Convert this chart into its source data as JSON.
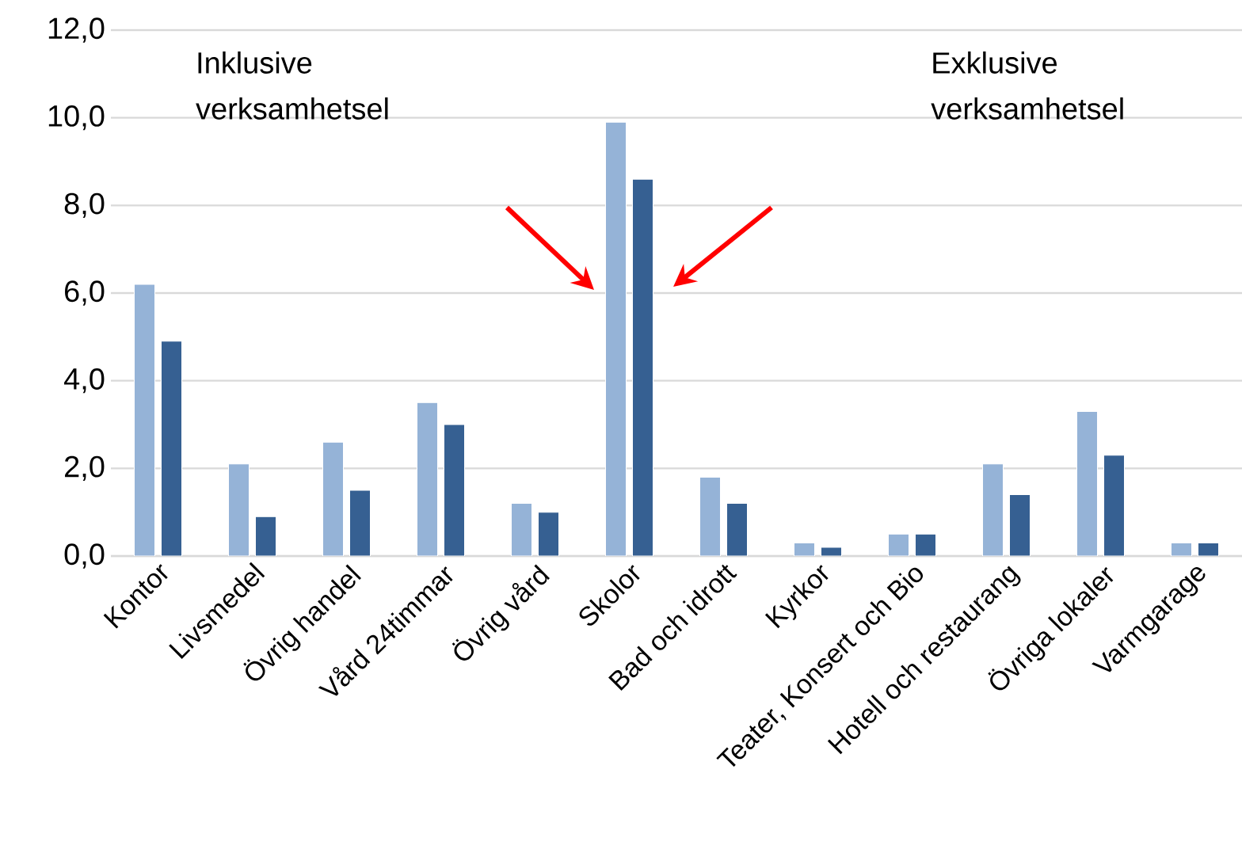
{
  "chart_data": {
    "type": "bar",
    "categories": [
      "Kontor",
      "Livsmedel",
      "Övrig handel",
      "Vård 24timmar",
      "Övrig vård",
      "Skolor",
      "Bad och idrott",
      "Kyrkor",
      "Teater, Konsert och Bio",
      "Hotell och restaurang",
      "Övriga lokaler",
      "Varmgarage"
    ],
    "series": [
      {
        "color": "#95b3d7",
        "values": [
          6.2,
          2.1,
          2.6,
          3.5,
          1.2,
          9.9,
          1.8,
          0.3,
          0.5,
          2.1,
          3.3,
          0.3
        ]
      },
      {
        "color": "#366092",
        "values": [
          4.9,
          0.9,
          1.5,
          3.0,
          1.0,
          8.6,
          1.2,
          0.2,
          0.5,
          1.4,
          2.3,
          0.3
        ]
      }
    ],
    "ylim": [
      0,
      12
    ],
    "yticks": [
      {
        "value": 0,
        "label": "0,0"
      },
      {
        "value": 2,
        "label": "2,0"
      },
      {
        "value": 4,
        "label": "4,0"
      },
      {
        "value": 6,
        "label": "6,0"
      },
      {
        "value": 8,
        "label": "8,0"
      },
      {
        "value": 10,
        "label": "10,0"
      },
      {
        "value": 12,
        "label": "12,0"
      }
    ],
    "grid": "y",
    "annotations": [
      "Inklusive verksamhetsel",
      "Exklusive verksamhetsel"
    ]
  }
}
